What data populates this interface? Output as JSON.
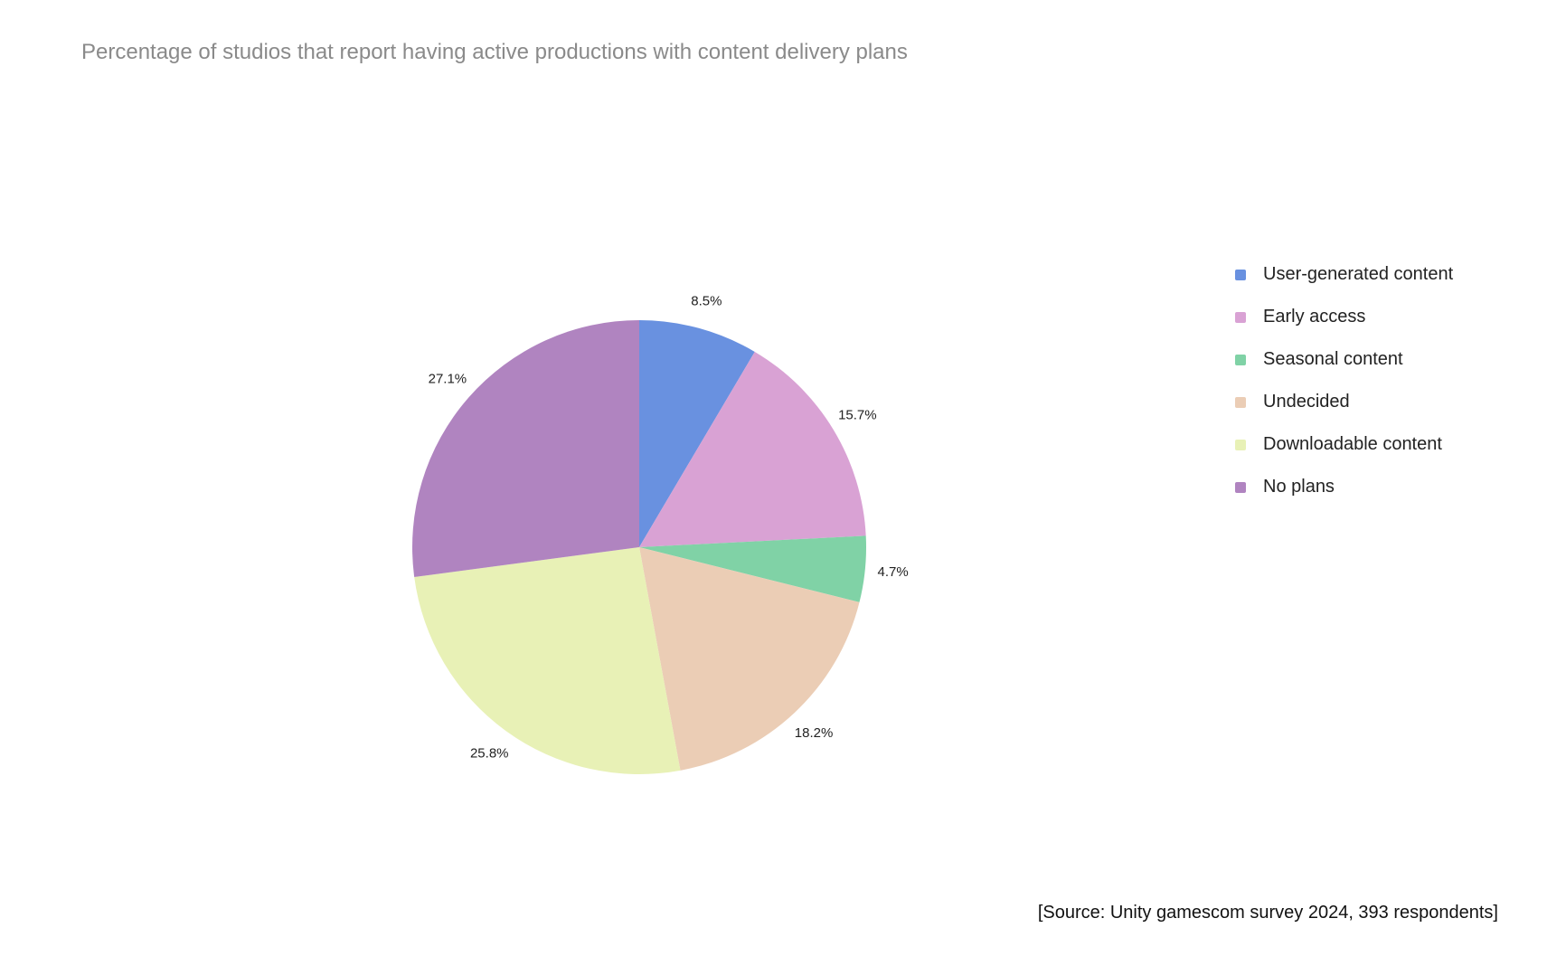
{
  "chart_data": {
    "type": "pie",
    "title": "Percentage of studios that report having active productions with content delivery plans",
    "categories": [
      "User-generated content",
      "Early access",
      "Seasonal content",
      "Undecided",
      "Downloadable content",
      "No plans"
    ],
    "values": [
      8.5,
      15.7,
      4.7,
      18.2,
      25.8,
      27.1
    ],
    "value_labels": [
      "8.5%",
      "15.7%",
      "4.7%",
      "18.2%",
      "25.8%",
      "27.1%"
    ],
    "colors": [
      "#6991e0",
      "#d9a2d4",
      "#80d2a6",
      "#ebcdb5",
      "#e8f1b6",
      "#b084c0"
    ],
    "start": "12 o'clock",
    "direction": "clockwise",
    "legend_position": "right"
  },
  "source": "[Source: Unity gamescom survey 2024, 393 respondents]"
}
